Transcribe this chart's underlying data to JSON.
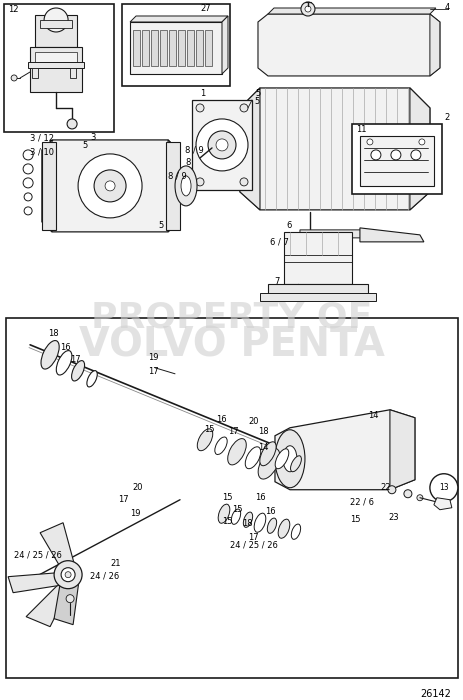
{
  "bg_color": "#ffffff",
  "watermark_line1": "PROPERTY OF",
  "watermark_line2": "VOLVO PENTA",
  "part_number": "26142",
  "figure_width": 4.64,
  "figure_height": 7.0,
  "dpi": 100,
  "line_color": "#1a1a1a",
  "label_fontsize": 6.0,
  "watermark_color": "#d0d0d0",
  "watermark_fontsize": 26,
  "gray_fill": "#e8e8e8",
  "light_gray": "#f2f2f2"
}
